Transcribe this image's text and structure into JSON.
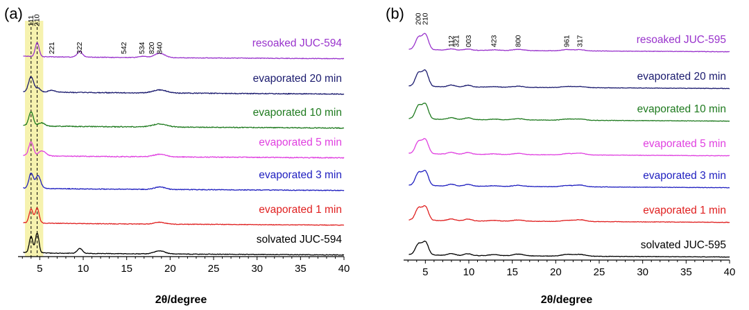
{
  "chart_data": [
    {
      "panel_label": "(a)",
      "type": "line",
      "xlabel": "2θ/degree",
      "ylabel": "",
      "xlim": [
        2.5,
        40
      ],
      "x_ticks": [
        5,
        10,
        15,
        20,
        25,
        30,
        35,
        40
      ],
      "highlight_band": {
        "x_range": [
          3.3,
          5.4
        ],
        "color": "#f5f0a0"
      },
      "dashed_lines_x": [
        4.0,
        4.7
      ],
      "stacked": true,
      "peak_labels": [
        "111",
        "210",
        "221",
        "322",
        "542",
        "534",
        "820",
        "840"
      ],
      "peak_label_x": [
        4.0,
        4.7,
        6.4,
        9.6,
        14.7,
        16.8,
        17.9,
        18.8
      ],
      "series": [
        {
          "name": "resoaked JUC-594",
          "color": "#9933cc",
          "peaks": [
            [
              4.7,
              22,
              0.22
            ],
            [
              9.6,
              9,
              0.3
            ],
            [
              16.8,
              2,
              0.4
            ],
            [
              18.8,
              7,
              0.6
            ]
          ],
          "baseline": 0,
          "noise": 0.5
        },
        {
          "name": "evaporated 20 min",
          "color": "#1a1a6e",
          "peaks": [
            [
              4.0,
              24,
              0.28
            ],
            [
              4.8,
              6,
              0.3
            ],
            [
              6.4,
              3,
              0.4
            ],
            [
              18.8,
              5,
              0.8
            ]
          ],
          "baseline": 0,
          "noise": 0.7
        },
        {
          "name": "evaporated 10 min",
          "color": "#1e7a1e",
          "peaks": [
            [
              4.0,
              22,
              0.26
            ],
            [
              5.2,
              5,
              0.35
            ],
            [
              18.8,
              5,
              0.8
            ]
          ],
          "baseline": 0,
          "noise": 0.7
        },
        {
          "name": "evaporated 5 min",
          "color": "#e040e0",
          "peaks": [
            [
              4.0,
              22,
              0.26
            ],
            [
              5.3,
              8,
              0.4
            ],
            [
              18.8,
              4,
              0.7
            ]
          ],
          "baseline": 0,
          "noise": 0.7
        },
        {
          "name": "evaporated 3 min",
          "color": "#2020c0",
          "peaks": [
            [
              4.0,
              24,
              0.24
            ],
            [
              4.8,
              20,
              0.3
            ],
            [
              18.8,
              4,
              0.6
            ]
          ],
          "baseline": 0,
          "noise": 0.6
        },
        {
          "name": "evaporated 1 min",
          "color": "#e02020",
          "peaks": [
            [
              4.0,
              22,
              0.22
            ],
            [
              4.7,
              24,
              0.22
            ],
            [
              18.8,
              3,
              0.6
            ]
          ],
          "baseline": 0,
          "noise": 0.5
        },
        {
          "name": "solvated JUC-594",
          "color": "#000000",
          "peaks": [
            [
              4.0,
              26,
              0.2
            ],
            [
              4.7,
              32,
              0.2
            ],
            [
              9.6,
              8,
              0.3
            ],
            [
              18.8,
              5,
              0.6
            ]
          ],
          "baseline": 0,
          "noise": 0.5
        }
      ]
    },
    {
      "panel_label": "(b)",
      "type": "line",
      "xlabel": "2θ/degree",
      "ylabel": "",
      "xlim": [
        2.5,
        40
      ],
      "x_ticks": [
        5,
        10,
        15,
        20,
        25,
        30,
        35,
        40
      ],
      "stacked": true,
      "peak_labels": [
        "200",
        "210",
        "112",
        "321",
        "003",
        "423",
        "800",
        "961",
        "317"
      ],
      "peak_label_x": [
        4.2,
        5.0,
        8.0,
        8.6,
        10.0,
        12.9,
        15.7,
        21.3,
        22.8
      ],
      "series": [
        {
          "name": "resoaked JUC-595",
          "color": "#9933cc",
          "peaks": [
            [
              4.2,
              20,
              0.35
            ],
            [
              5.0,
              26,
              0.35
            ],
            [
              8.0,
              2,
              0.4
            ],
            [
              9.9,
              2,
              0.4
            ],
            [
              12.9,
              1,
              0.5
            ],
            [
              15.7,
              2,
              0.6
            ],
            [
              21.3,
              2,
              0.6
            ],
            [
              22.8,
              2,
              0.6
            ]
          ],
          "baseline": 0,
          "noise": 0.4
        },
        {
          "name": "evaporated 20 min",
          "color": "#1a1a6e",
          "peaks": [
            [
              4.2,
              22,
              0.35
            ],
            [
              5.0,
              26,
              0.35
            ],
            [
              8.0,
              3,
              0.4
            ],
            [
              9.9,
              3,
              0.4
            ],
            [
              12.9,
              1,
              0.5
            ],
            [
              15.7,
              2,
              0.6
            ],
            [
              21.3,
              2,
              0.6
            ],
            [
              22.8,
              2,
              0.6
            ]
          ],
          "baseline": 0,
          "noise": 0.4
        },
        {
          "name": "evaporated 10 min",
          "color": "#1e7a1e",
          "peaks": [
            [
              4.2,
              22,
              0.35
            ],
            [
              5.0,
              25,
              0.35
            ],
            [
              8.0,
              3,
              0.4
            ],
            [
              9.9,
              3,
              0.4
            ],
            [
              12.9,
              1,
              0.5
            ],
            [
              15.7,
              2,
              0.6
            ],
            [
              21.3,
              2,
              0.6
            ],
            [
              22.8,
              2,
              0.6
            ]
          ],
          "baseline": 0,
          "noise": 0.4
        },
        {
          "name": "evaporated 5 min",
          "color": "#e040e0",
          "peaks": [
            [
              4.2,
              20,
              0.35
            ],
            [
              5.0,
              24,
              0.35
            ],
            [
              8.0,
              3,
              0.4
            ],
            [
              9.9,
              3,
              0.4
            ],
            [
              12.9,
              1,
              0.5
            ],
            [
              15.7,
              2,
              0.6
            ],
            [
              21.3,
              2,
              0.6
            ],
            [
              22.8,
              3,
              0.6
            ]
          ],
          "baseline": 0,
          "noise": 0.4
        },
        {
          "name": "evaporated 3 min",
          "color": "#2020c0",
          "peaks": [
            [
              4.2,
              21,
              0.35
            ],
            [
              5.0,
              24,
              0.35
            ],
            [
              8.0,
              3,
              0.4
            ],
            [
              9.9,
              3,
              0.4
            ],
            [
              12.9,
              1,
              0.5
            ],
            [
              15.7,
              2,
              0.6
            ],
            [
              21.3,
              2,
              0.6
            ],
            [
              22.8,
              3,
              0.6
            ]
          ],
          "baseline": 0,
          "noise": 0.4
        },
        {
          "name": "evaporated 1 min",
          "color": "#e02020",
          "peaks": [
            [
              4.2,
              20,
              0.35
            ],
            [
              5.0,
              23,
              0.35
            ],
            [
              8.0,
              3,
              0.4
            ],
            [
              9.9,
              3,
              0.4
            ],
            [
              12.9,
              1,
              0.5
            ],
            [
              15.7,
              2,
              0.6
            ],
            [
              21.3,
              2,
              0.6
            ],
            [
              22.8,
              3,
              0.6
            ]
          ],
          "baseline": 0,
          "noise": 0.4
        },
        {
          "name": "solvated JUC-595",
          "color": "#000000",
          "peaks": [
            [
              4.2,
              18,
              0.35
            ],
            [
              5.0,
              22,
              0.35
            ],
            [
              8.0,
              3,
              0.4
            ],
            [
              9.9,
              3,
              0.4
            ],
            [
              12.9,
              2,
              0.5
            ],
            [
              15.7,
              3,
              0.6
            ],
            [
              21.3,
              3,
              0.6
            ],
            [
              22.8,
              3,
              0.6
            ]
          ],
          "baseline": 0,
          "noise": 0.4
        }
      ]
    }
  ]
}
